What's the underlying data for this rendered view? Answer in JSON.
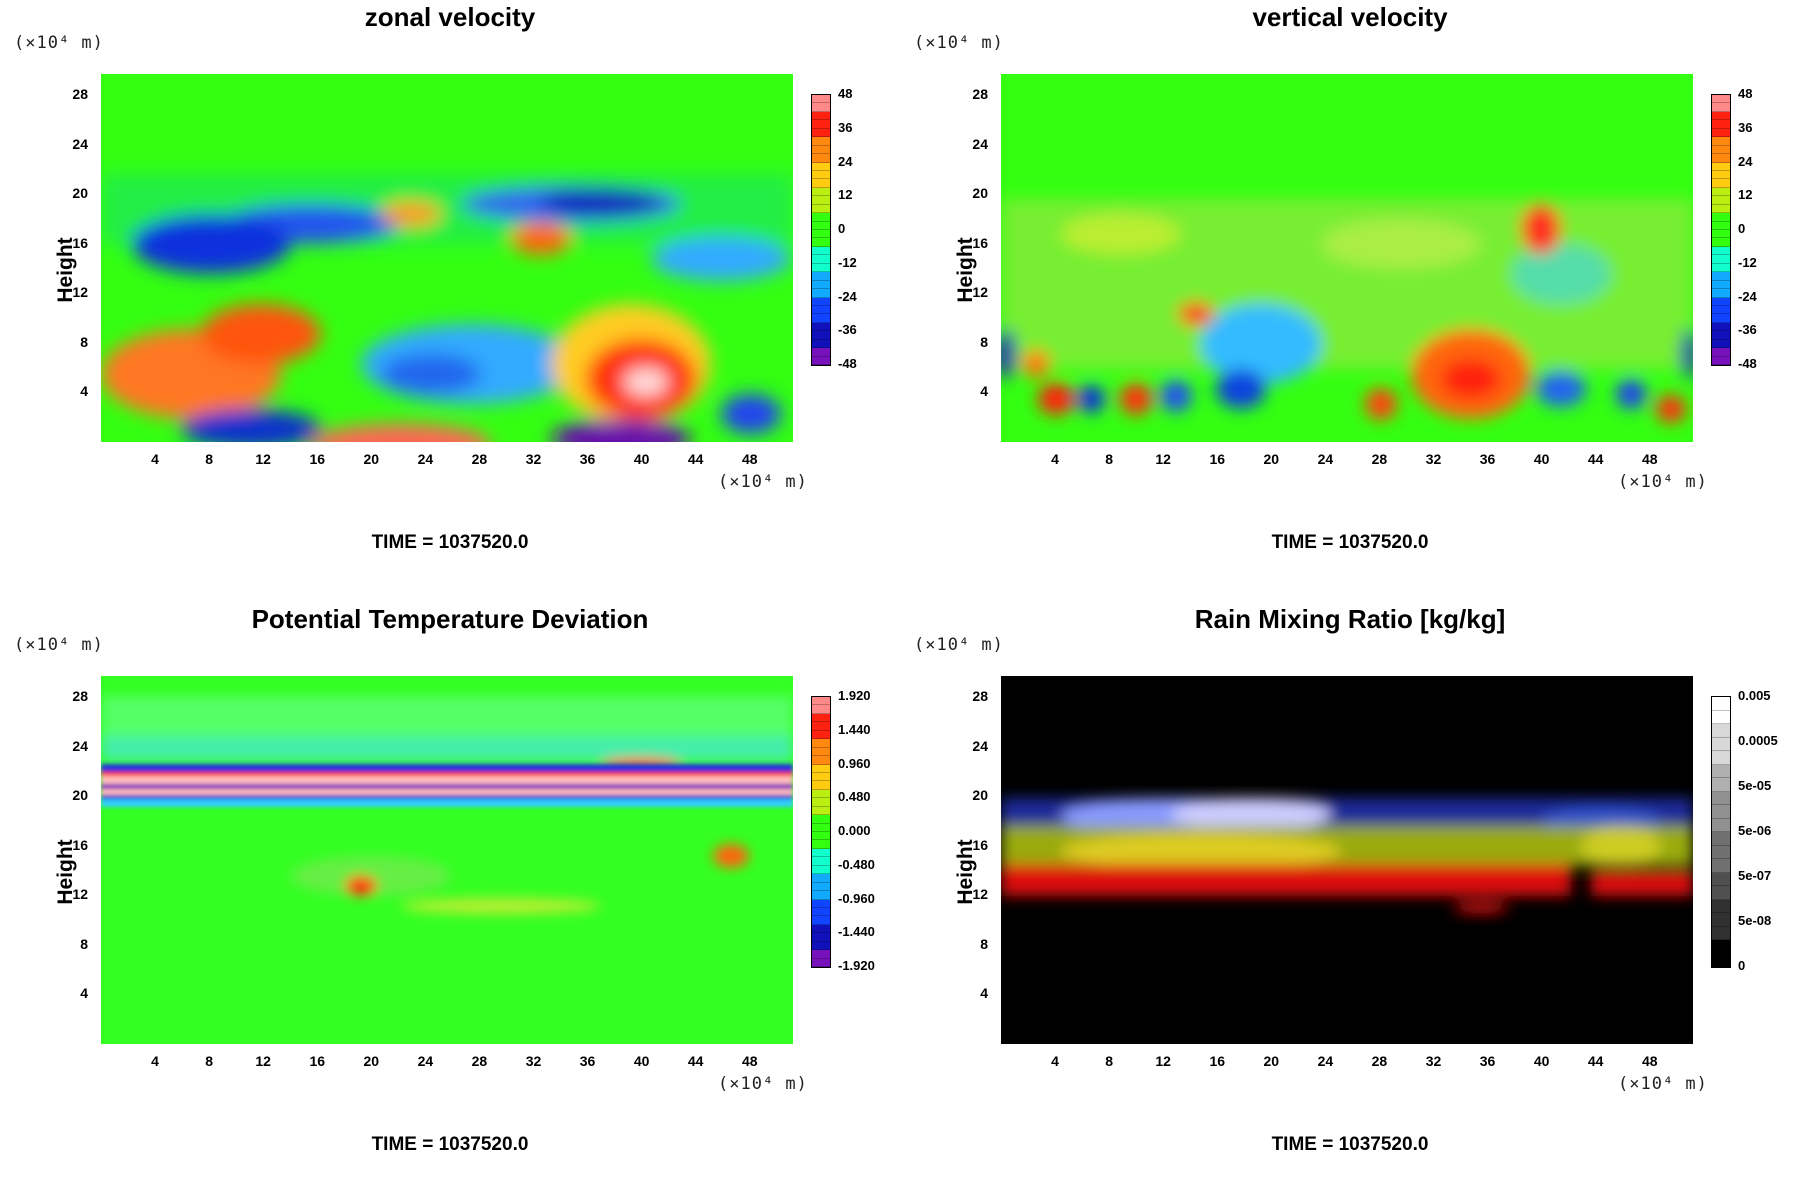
{
  "time_label": "TIME = 1037520.0",
  "chart_data": [
    {
      "type": "heatmap",
      "title": "zonal velocity",
      "ylabel": "Height",
      "y_unit": "(×10⁴ m)",
      "x_unit": "(×10⁴ m)",
      "x_ticks": [
        "4",
        "8",
        "12",
        "16",
        "20",
        "24",
        "28",
        "32",
        "36",
        "40",
        "44",
        "48"
      ],
      "y_ticks": [
        "4",
        "8",
        "12",
        "16",
        "20",
        "24",
        "28"
      ],
      "colorbar": [
        "48",
        "36",
        "24",
        "12",
        "0",
        "-12",
        "-24",
        "-36",
        "-48"
      ],
      "colorbar_type": "rainbow",
      "background": "#33ff11"
    },
    {
      "type": "heatmap",
      "title": "vertical velocity",
      "ylabel": "Height",
      "y_unit": "(×10⁴ m)",
      "x_unit": "(×10⁴ m)",
      "x_ticks": [
        "4",
        "8",
        "12",
        "16",
        "20",
        "24",
        "28",
        "32",
        "36",
        "40",
        "44",
        "48"
      ],
      "y_ticks": [
        "4",
        "8",
        "12",
        "16",
        "20",
        "24",
        "28"
      ],
      "colorbar": [
        "48",
        "36",
        "24",
        "12",
        "0",
        "-12",
        "-24",
        "-36",
        "-48"
      ],
      "colorbar_type": "rainbow",
      "background": "#33ff11"
    },
    {
      "type": "heatmap",
      "title": "Potential Temperature Deviation",
      "ylabel": "Height",
      "y_unit": "(×10⁴ m)",
      "x_unit": "(×10⁴ m)",
      "x_ticks": [
        "4",
        "8",
        "12",
        "16",
        "20",
        "24",
        "28",
        "32",
        "36",
        "40",
        "44",
        "48"
      ],
      "y_ticks": [
        "4",
        "8",
        "12",
        "16",
        "20",
        "24",
        "28"
      ],
      "colorbar": [
        "1.920",
        "1.440",
        "0.960",
        "0.480",
        "0.000",
        "-0.480",
        "-0.960",
        "-1.440",
        "-1.920"
      ],
      "colorbar_type": "rainbow",
      "background": "#33ff22"
    },
    {
      "type": "heatmap",
      "title": "Rain Mixing Ratio [kg/kg]",
      "ylabel": "Height",
      "y_unit": "(×10⁴ m)",
      "x_unit": "(×10⁴ m)",
      "x_ticks": [
        "4",
        "8",
        "12",
        "16",
        "20",
        "24",
        "28",
        "32",
        "36",
        "40",
        "44",
        "48"
      ],
      "y_ticks": [
        "4",
        "8",
        "12",
        "16",
        "20",
        "24",
        "28"
      ],
      "colorbar": [
        "0.005",
        "0.0005",
        "5e-05",
        "5e-06",
        "5e-07",
        "5e-08",
        "0"
      ],
      "colorbar_type": "gray",
      "background": "#000000"
    }
  ]
}
